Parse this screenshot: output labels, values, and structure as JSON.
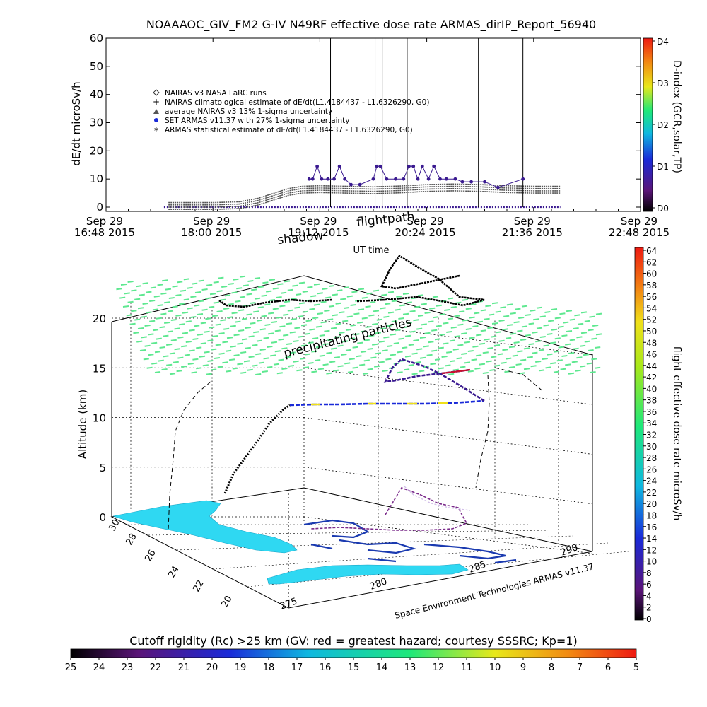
{
  "header": {
    "title": "NOAAAOC_GIV_FM2 G-IV    N49RF   effective dose rate ARMAS_dirIP_Report_56940"
  },
  "chart_data": [
    {
      "type": "scatter",
      "ylabel": "dE/dt microSv/h",
      "xlabel": "UT time",
      "ylim": [
        0,
        60
      ],
      "yticks": [
        "0",
        "10",
        "20",
        "30",
        "40",
        "50",
        "60"
      ],
      "xticks": [
        {
          "l1": "Sep 29",
          "l2": "16:48 2015"
        },
        {
          "l1": "Sep 29",
          "l2": "18:00 2015"
        },
        {
          "l1": "Sep 29",
          "l2": "19:12 2015"
        },
        {
          "l1": "Sep 29",
          "l2": "20:24 2015"
        },
        {
          "l1": "Sep 29",
          "l2": "21:36 2015"
        },
        {
          "l1": "Sep 29",
          "l2": "22:48 2015"
        }
      ],
      "xlim_hours": [
        16.8,
        22.8
      ],
      "legend_position": "upper-left",
      "legend": [
        {
          "symbol": "diamond",
          "label": "NAIRAS v3 NASA LaRC runs"
        },
        {
          "symbol": "plus",
          "label": "NAIRAS climatological estimate of dE/dt(L1.4184437 - L1.6326290, G0)"
        },
        {
          "symbol": "triangle",
          "label": "average NAIRAS v3 13% 1-sigma uncertainty"
        },
        {
          "symbol": "dot",
          "label": "SET ARMAS v11.37 with 27% 1-sigma uncertainty"
        },
        {
          "symbol": "asterisk",
          "label": "ARMAS statistical estimate of dE/dt(L1.4184437 - L1.6326290, G0)"
        }
      ],
      "colorbar": {
        "label": "D-index (GCR,solar,TP)",
        "ticks": [
          "D0",
          "D1",
          "D2",
          "D3",
          "D4"
        ]
      },
      "series": [
        {
          "name": "NAIRAS climatological estimate",
          "x_hours": [
            17.5,
            18.0,
            18.3,
            18.5,
            18.7,
            18.85,
            19.0,
            19.2,
            19.5,
            19.8,
            20.1,
            20.4,
            20.7,
            21.0,
            21.3,
            21.6,
            21.9
          ],
          "y": [
            0,
            0,
            0.3,
            1.5,
            3.5,
            5.0,
            5.8,
            6.0,
            5.8,
            5.6,
            5.9,
            6.4,
            6.6,
            6.4,
            6.0,
            5.8,
            5.8
          ]
        },
        {
          "name": "SET ARMAS v11.37",
          "points": [
            [
              19.08,
              10
            ],
            [
              19.12,
              10
            ],
            [
              19.17,
              14.5
            ],
            [
              19.22,
              10
            ],
            [
              19.29,
              10
            ],
            [
              19.36,
              10
            ],
            [
              19.42,
              14.5
            ],
            [
              19.48,
              10
            ],
            [
              19.55,
              8
            ],
            [
              19.65,
              8
            ],
            [
              19.8,
              10
            ],
            [
              19.84,
              14.5
            ],
            [
              19.88,
              14.5
            ],
            [
              19.95,
              10
            ],
            [
              20.05,
              10
            ],
            [
              20.14,
              10
            ],
            [
              20.2,
              14.5
            ],
            [
              20.25,
              14.5
            ],
            [
              20.3,
              10
            ],
            [
              20.35,
              14.5
            ],
            [
              20.42,
              10
            ],
            [
              20.48,
              14.5
            ],
            [
              20.55,
              10
            ],
            [
              20.62,
              10
            ],
            [
              20.72,
              10
            ],
            [
              20.8,
              9
            ],
            [
              20.9,
              9
            ],
            [
              21.05,
              9
            ],
            [
              21.2,
              7
            ],
            [
              21.48,
              10
            ]
          ],
          "spikes_hours": [
            19.32,
            19.82,
            19.9,
            20.18,
            20.98,
            21.48
          ]
        }
      ]
    },
    {
      "type": "scatter",
      "title": "shadow flightpath",
      "title_words": [
        "shadow",
        "flightpath"
      ],
      "zlabel": "Altitude (km)",
      "zlim": [
        0,
        20
      ],
      "zticks": [
        "0",
        "5",
        "10",
        "15",
        "20"
      ],
      "lat_ticks": [
        "30",
        "28",
        "26",
        "24",
        "22",
        "20"
      ],
      "lon_ticks": [
        "275",
        "280",
        "285",
        "290"
      ],
      "annotation": "precipitating particles",
      "credit": "Space Environment Technologies ARMAS v11.37",
      "colorbar": {
        "label": "flight effective dose rate microSv/h",
        "min": 0,
        "max": 64,
        "step": 2
      },
      "bottom_colorbar": {
        "title": "Cutoff rigidity (Rc) >25 km (GV: red = greatest hazard; courtesy SSSRC; Kp=1)",
        "ticks": [
          "25",
          "24",
          "23",
          "22",
          "21",
          "20",
          "19",
          "18",
          "17",
          "16",
          "15",
          "14",
          "13",
          "12",
          "11",
          "10",
          "9",
          "8",
          "7",
          "6",
          "5"
        ]
      }
    }
  ],
  "colors": {
    "nairas": "#555555",
    "armas": "#3a1a90",
    "particles": "#5ee890",
    "land": "#2fd8f2",
    "coast": "#1a3ab0",
    "path": "#000000"
  }
}
